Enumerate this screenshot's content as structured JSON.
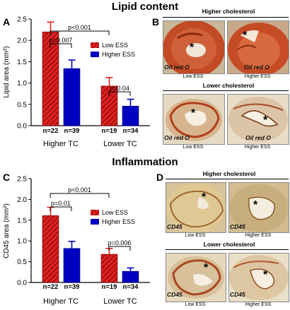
{
  "titles": {
    "lipid": "Lipid content",
    "inflammation": "Inflammation"
  },
  "panels": {
    "a": "A",
    "b": "B",
    "c": "C",
    "d": "D"
  },
  "chart_data": [
    {
      "type": "bar",
      "ylabel": "Lipid area (mm²)",
      "ylim": [
        0,
        2.5
      ],
      "yticks": [
        "0.0",
        "0.5",
        "1.0",
        "1.5",
        "2.0",
        "2.5"
      ],
      "yticks_values": [
        0,
        0.5,
        1.0,
        1.5,
        2.0,
        2.5
      ],
      "groups": [
        "Higher TC",
        "Lower TC"
      ],
      "series": [
        {
          "name": "Low ESS",
          "values": [
            2.2,
            0.93
          ],
          "errors": [
            0.23,
            0.2
          ],
          "color": "#e02020",
          "hatch": true,
          "n": [
            "n=22",
            "n=19"
          ]
        },
        {
          "name": "Higher ESS",
          "values": [
            1.34,
            0.46
          ],
          "errors": [
            0.2,
            0.16
          ],
          "color": "#0000c0",
          "hatch": false,
          "n": [
            "n=39",
            "n=34"
          ]
        }
      ],
      "annotations": [
        "p<0.001",
        "p=0.007",
        "p=0.04"
      ]
    },
    {
      "type": "bar",
      "ylabel": "CD45 area (mm²)",
      "ylim": [
        0,
        2.5
      ],
      "yticks": [
        "0.0",
        "0.5",
        "1.0",
        "1.5",
        "2.0",
        "2.5"
      ],
      "yticks_values": [
        0,
        0.5,
        1.0,
        1.5,
        2.0,
        2.5
      ],
      "groups": [
        "Higher TC",
        "Lower TC"
      ],
      "series": [
        {
          "name": "Low ESS",
          "values": [
            1.61,
            0.68
          ],
          "errors": [
            0.2,
            0.14
          ],
          "color": "#e02020",
          "hatch": true,
          "n": [
            "n=22",
            "n=19"
          ]
        },
        {
          "name": "Higher ESS",
          "values": [
            0.82,
            0.27
          ],
          "errors": [
            0.17,
            0.08
          ],
          "color": "#0000c0",
          "hatch": false,
          "n": [
            "n=39",
            "n=34"
          ]
        }
      ],
      "annotations": [
        "p<0.001",
        "p=0.01",
        "p=0.006"
      ]
    }
  ],
  "micrographs": {
    "b": {
      "top_title": "Higher cholesterol",
      "bottom_title": "Lower cholesterol",
      "stain": "Oil red O",
      "captions": [
        "Low ESS",
        "Higher ESS",
        "Low ESS",
        "Higher ESS"
      ]
    },
    "d": {
      "top_title": "Higher cholesterol",
      "bottom_title": "Lower cholesterol",
      "stain": "CD45",
      "captions": [
        "Low ESS",
        "Higher ESS",
        "Low ESS",
        "Higher ESS"
      ]
    },
    "star": "*"
  }
}
